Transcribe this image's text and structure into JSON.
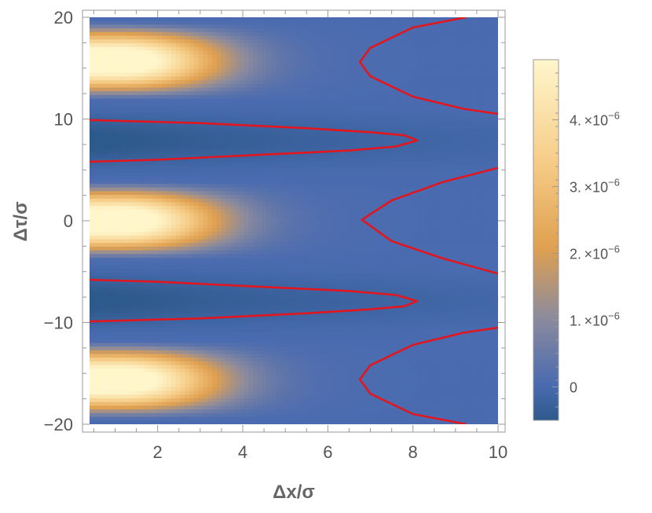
{
  "chart_data": {
    "type": "heatmap",
    "title": "",
    "xlabel": "Δx/σ",
    "ylabel": "Δτ/σ",
    "xlim": [
      0.4,
      10
    ],
    "ylim": [
      -20.5,
      20.5
    ],
    "x_ticks": [
      2,
      4,
      6,
      8,
      10
    ],
    "x_tick_labels": [
      "2",
      "4",
      "6",
      "8",
      "10"
    ],
    "y_ticks": [
      20,
      10,
      0,
      -10,
      -20
    ],
    "y_tick_labels": [
      "20",
      "10",
      "0",
      "−10",
      "−20"
    ],
    "data_x_range": [
      0.4,
      10
    ],
    "data_y_range": [
      -20,
      20
    ],
    "colorbar": {
      "range": [
        -5e-07,
        4.9e-06
      ],
      "ticks": [
        0,
        1e-06,
        2e-06,
        3e-06,
        4e-06
      ],
      "tick_mantissas": [
        "0",
        "1.",
        "2.",
        "3.",
        "4."
      ],
      "tick_exponent_base": "×10",
      "tick_exponent": "−6",
      "colors": [
        "#2d5a8c",
        "#4a6bb0",
        "#8a8a9e",
        "#e0a050",
        "#fff6cc"
      ]
    },
    "contours": [
      {
        "name": "top-right",
        "points": [
          [
            9.25,
            20
          ],
          [
            8.0,
            19.0
          ],
          [
            7.0,
            17.0
          ],
          [
            6.75,
            15.6
          ],
          [
            7.0,
            14.2
          ],
          [
            8.0,
            12.2
          ],
          [
            9.2,
            11.0
          ],
          [
            10,
            10.5
          ]
        ]
      },
      {
        "name": "upper-finger",
        "points": [
          [
            0.4,
            9.9
          ],
          [
            3.0,
            9.6
          ],
          [
            5.5,
            9.1
          ],
          [
            7.0,
            8.7
          ],
          [
            7.8,
            8.4
          ],
          [
            8.1,
            7.9
          ],
          [
            7.6,
            7.3
          ],
          [
            6.5,
            6.9
          ],
          [
            4.0,
            6.4
          ],
          [
            2.0,
            6.0
          ],
          [
            0.4,
            5.8
          ]
        ]
      },
      {
        "name": "middle-right",
        "points": [
          [
            10,
            5.2
          ],
          [
            8.7,
            3.8
          ],
          [
            7.5,
            2.0
          ],
          [
            6.8,
            0.1
          ],
          [
            7.5,
            -2.0
          ],
          [
            8.7,
            -3.7
          ],
          [
            10,
            -5.2
          ]
        ]
      },
      {
        "name": "lower-finger",
        "points": [
          [
            0.4,
            -5.8
          ],
          [
            2.0,
            -6.0
          ],
          [
            4.0,
            -6.4
          ],
          [
            6.5,
            -6.9
          ],
          [
            7.6,
            -7.3
          ],
          [
            8.1,
            -7.9
          ],
          [
            7.8,
            -8.4
          ],
          [
            7.0,
            -8.7
          ],
          [
            5.5,
            -9.1
          ],
          [
            3.0,
            -9.6
          ],
          [
            0.4,
            -9.9
          ]
        ]
      },
      {
        "name": "bottom-right",
        "points": [
          [
            10,
            -10.5
          ],
          [
            9.2,
            -11.0
          ],
          [
            8.0,
            -12.2
          ],
          [
            7.0,
            -14.2
          ],
          [
            6.75,
            -15.6
          ],
          [
            7.0,
            -17.0
          ],
          [
            8.0,
            -19.0
          ],
          [
            9.25,
            -20
          ]
        ]
      }
    ],
    "contour_color": "#e2161e",
    "grid": false,
    "legend": "colorbar-right"
  }
}
